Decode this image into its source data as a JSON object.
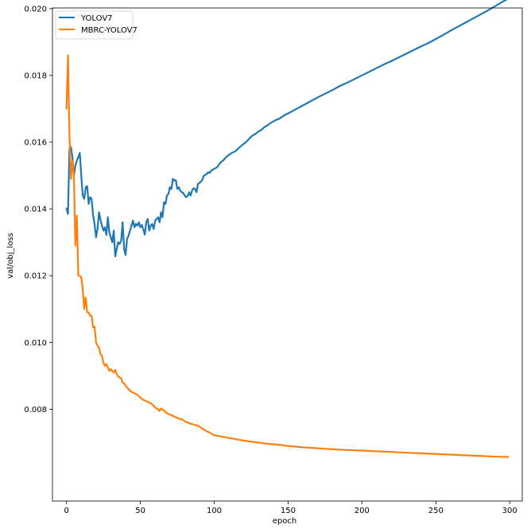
{
  "chart_data": {
    "type": "line",
    "title": "",
    "xlabel": "epoch",
    "ylabel": "val/obj_loss",
    "xlim": [
      -9.5,
      308.5
    ],
    "ylim": [
      0.00525,
      0.02002
    ],
    "xticks": [
      0,
      50,
      100,
      150,
      200,
      250,
      300
    ],
    "yticks": [
      0.008,
      0.01,
      0.012,
      0.014,
      0.016,
      0.018,
      0.02
    ],
    "ytick_labels": [
      "0.008",
      "0.010",
      "0.012",
      "0.014",
      "0.016",
      "0.018",
      "0.020"
    ],
    "grid": false,
    "legend_position": "top-left",
    "series": [
      {
        "name": "YOLOV7",
        "color": "#1f77b4",
        "points": [
          [
            0,
            0.01401
          ],
          [
            1,
            0.01385
          ],
          [
            2,
            0.0158
          ],
          [
            3,
            0.01585
          ],
          [
            4,
            0.01555
          ],
          [
            5,
            0.015
          ],
          [
            6,
            0.0153
          ],
          [
            7,
            0.01545
          ],
          [
            8,
            0.01555
          ],
          [
            9,
            0.01568
          ],
          [
            10,
            0.015
          ],
          [
            11,
            0.0144
          ],
          [
            12,
            0.0143
          ],
          [
            13,
            0.01465
          ],
          [
            14,
            0.01468
          ],
          [
            15,
            0.01415
          ],
          [
            16,
            0.01435
          ],
          [
            17,
            0.0143
          ],
          [
            18,
            0.0138
          ],
          [
            19,
            0.01355
          ],
          [
            20,
            0.01315
          ],
          [
            21,
            0.0134
          ],
          [
            22,
            0.0139
          ],
          [
            23,
            0.01368
          ],
          [
            24,
            0.0135
          ],
          [
            25,
            0.01335
          ],
          [
            26,
            0.01345
          ],
          [
            27,
            0.01322
          ],
          [
            28,
            0.01375
          ],
          [
            29,
            0.0133
          ],
          [
            30,
            0.01315
          ],
          [
            31,
            0.013
          ],
          [
            32,
            0.01335
          ],
          [
            33,
            0.01258
          ],
          [
            34,
            0.0128
          ],
          [
            35,
            0.013
          ],
          [
            36,
            0.01295
          ],
          [
            37,
            0.01305
          ],
          [
            38,
            0.0136
          ],
          [
            39,
            0.0128
          ],
          [
            40,
            0.01262
          ],
          [
            41,
            0.0131
          ],
          [
            42,
            0.0132
          ],
          [
            43,
            0.01335
          ],
          [
            44,
            0.0135
          ],
          [
            45,
            0.01365
          ],
          [
            46,
            0.01345
          ],
          [
            47,
            0.01355
          ],
          [
            48,
            0.0135
          ],
          [
            49,
            0.0136
          ],
          [
            50,
            0.01345
          ],
          [
            51,
            0.01352
          ],
          [
            52,
            0.01338
          ],
          [
            53,
            0.01323
          ],
          [
            54,
            0.0136
          ],
          [
            55,
            0.0137
          ],
          [
            56,
            0.01335
          ],
          [
            57,
            0.0135
          ],
          [
            58,
            0.01355
          ],
          [
            59,
            0.0134
          ],
          [
            60,
            0.01365
          ],
          [
            61,
            0.0137
          ],
          [
            62,
            0.01375
          ],
          [
            63,
            0.0136
          ],
          [
            64,
            0.0139
          ],
          [
            65,
            0.01375
          ],
          [
            66,
            0.0142
          ],
          [
            67,
            0.01415
          ],
          [
            68,
            0.0144
          ],
          [
            69,
            0.01445
          ],
          [
            70,
            0.01465
          ],
          [
            71,
            0.0146
          ],
          [
            72,
            0.0149
          ],
          [
            73,
            0.01485
          ],
          [
            74,
            0.01486
          ],
          [
            75,
            0.0146
          ],
          [
            76,
            0.01465
          ],
          [
            77,
            0.01455
          ],
          [
            78,
            0.0145
          ],
          [
            79,
            0.01448
          ],
          [
            80,
            0.0144
          ],
          [
            81,
            0.01435
          ],
          [
            82,
            0.01438
          ],
          [
            83,
            0.0145
          ],
          [
            84,
            0.0144
          ],
          [
            85,
            0.01455
          ],
          [
            86,
            0.01462
          ],
          [
            87,
            0.0146
          ],
          [
            88,
            0.0145
          ],
          [
            89,
            0.01475
          ],
          [
            90,
            0.01478
          ],
          [
            91,
            0.01482
          ],
          [
            92,
            0.01488
          ],
          [
            93,
            0.015
          ],
          [
            94,
            0.01502
          ],
          [
            95,
            0.01505
          ],
          [
            96,
            0.0151
          ],
          [
            97,
            0.01508
          ],
          [
            98,
            0.01515
          ],
          [
            99,
            0.01518
          ],
          [
            100,
            0.0152
          ],
          [
            102,
            0.01525
          ],
          [
            104,
            0.01538
          ],
          [
            106,
            0.01545
          ],
          [
            108,
            0.01555
          ],
          [
            110,
            0.01562
          ],
          [
            112,
            0.01568
          ],
          [
            114,
            0.01572
          ],
          [
            116,
            0.0158
          ],
          [
            118,
            0.01588
          ],
          [
            120,
            0.01595
          ],
          [
            122,
            0.01602
          ],
          [
            124,
            0.01612
          ],
          [
            126,
            0.0162
          ],
          [
            128,
            0.01625
          ],
          [
            130,
            0.01632
          ],
          [
            132,
            0.01637
          ],
          [
            134,
            0.01645
          ],
          [
            136,
            0.0165
          ],
          [
            138,
            0.01657
          ],
          [
            140,
            0.01662
          ],
          [
            142,
            0.01667
          ],
          [
            144,
            0.0167
          ],
          [
            146,
            0.01676
          ],
          [
            148,
            0.01682
          ],
          [
            150,
            0.01686
          ],
          [
            155,
            0.01698
          ],
          [
            160,
            0.0171
          ],
          [
            165,
            0.01722
          ],
          [
            170,
            0.01734
          ],
          [
            175,
            0.01745
          ],
          [
            180,
            0.01756
          ],
          [
            185,
            0.01768
          ],
          [
            190,
            0.01778
          ],
          [
            195,
            0.01789
          ],
          [
            200,
            0.018
          ],
          [
            205,
            0.01811
          ],
          [
            210,
            0.01822
          ],
          [
            215,
            0.01833
          ],
          [
            220,
            0.01843
          ],
          [
            225,
            0.01854
          ],
          [
            230,
            0.01865
          ],
          [
            235,
            0.01876
          ],
          [
            240,
            0.01887
          ],
          [
            245,
            0.01897
          ],
          [
            250,
            0.01909
          ],
          [
            255,
            0.01921
          ],
          [
            260,
            0.01934
          ],
          [
            265,
            0.01946
          ],
          [
            270,
            0.01958
          ],
          [
            275,
            0.0197
          ],
          [
            280,
            0.01982
          ],
          [
            285,
            0.01994
          ],
          [
            290,
            0.02007
          ],
          [
            295,
            0.0202
          ],
          [
            299,
            0.0203
          ]
        ]
      },
      {
        "name": "MBRC-YOLOV7",
        "color": "#ff7f0e",
        "points": [
          [
            0,
            0.017
          ],
          [
            1,
            0.0186
          ],
          [
            2,
            0.0162
          ],
          [
            3,
            0.0149
          ],
          [
            4,
            0.01545
          ],
          [
            5,
            0.015
          ],
          [
            6,
            0.0129
          ],
          [
            7,
            0.0138
          ],
          [
            8,
            0.012
          ],
          [
            9,
            0.012
          ],
          [
            10,
            0.01195
          ],
          [
            11,
            0.0116
          ],
          [
            12,
            0.011
          ],
          [
            13,
            0.01135
          ],
          [
            14,
            0.0109
          ],
          [
            15,
            0.0109
          ],
          [
            16,
            0.0108
          ],
          [
            17,
            0.0108
          ],
          [
            18,
            0.01045
          ],
          [
            19,
            0.01048
          ],
          [
            20,
            0.01
          ],
          [
            21,
            0.0099
          ],
          [
            22,
            0.00985
          ],
          [
            23,
            0.00965
          ],
          [
            24,
            0.0096
          ],
          [
            25,
            0.0094
          ],
          [
            26,
            0.0093
          ],
          [
            27,
            0.00935
          ],
          [
            28,
            0.00925
          ],
          [
            29,
            0.00915
          ],
          [
            30,
            0.0092
          ],
          [
            31,
            0.00915
          ],
          [
            32,
            0.0091
          ],
          [
            33,
            0.00918
          ],
          [
            34,
            0.00905
          ],
          [
            35,
            0.00898
          ],
          [
            36,
            0.00895
          ],
          [
            37,
            0.00893
          ],
          [
            38,
            0.0088
          ],
          [
            39,
            0.00878
          ],
          [
            40,
            0.0087
          ],
          [
            42,
            0.0086
          ],
          [
            44,
            0.00852
          ],
          [
            46,
            0.00848
          ],
          [
            48,
            0.00843
          ],
          [
            50,
            0.00835
          ],
          [
            52,
            0.00828
          ],
          [
            54,
            0.00824
          ],
          [
            56,
            0.0082
          ],
          [
            58,
            0.00815
          ],
          [
            60,
            0.00805
          ],
          [
            62,
            0.008
          ],
          [
            63,
            0.00795
          ],
          [
            64,
            0.00802
          ],
          [
            66,
            0.00796
          ],
          [
            68,
            0.00788
          ],
          [
            70,
            0.00784
          ],
          [
            72,
            0.0078
          ],
          [
            74,
            0.00776
          ],
          [
            76,
            0.00772
          ],
          [
            78,
            0.0077
          ],
          [
            80,
            0.00764
          ],
          [
            82,
            0.0076
          ],
          [
            84,
            0.00757
          ],
          [
            86,
            0.00754
          ],
          [
            88,
            0.00752
          ],
          [
            90,
            0.00748
          ],
          [
            92,
            0.00742
          ],
          [
            94,
            0.00736
          ],
          [
            96,
            0.00732
          ],
          [
            98,
            0.00727
          ],
          [
            100,
            0.00722
          ],
          [
            105,
            0.00718
          ],
          [
            110,
            0.00714
          ],
          [
            115,
            0.0071
          ],
          [
            120,
            0.00706
          ],
          [
            125,
            0.00703
          ],
          [
            130,
            0.007
          ],
          [
            135,
            0.00697
          ],
          [
            140,
            0.00695
          ],
          [
            145,
            0.00693
          ],
          [
            150,
            0.0069
          ],
          [
            160,
            0.00686
          ],
          [
            170,
            0.00683
          ],
          [
            180,
            0.0068
          ],
          [
            190,
            0.00678
          ],
          [
            200,
            0.00676
          ],
          [
            210,
            0.00674
          ],
          [
            220,
            0.00672
          ],
          [
            230,
            0.0067
          ],
          [
            240,
            0.00668
          ],
          [
            250,
            0.00666
          ],
          [
            260,
            0.00664
          ],
          [
            270,
            0.00662
          ],
          [
            280,
            0.0066
          ],
          [
            290,
            0.00658
          ],
          [
            299,
            0.00657
          ]
        ]
      }
    ]
  }
}
